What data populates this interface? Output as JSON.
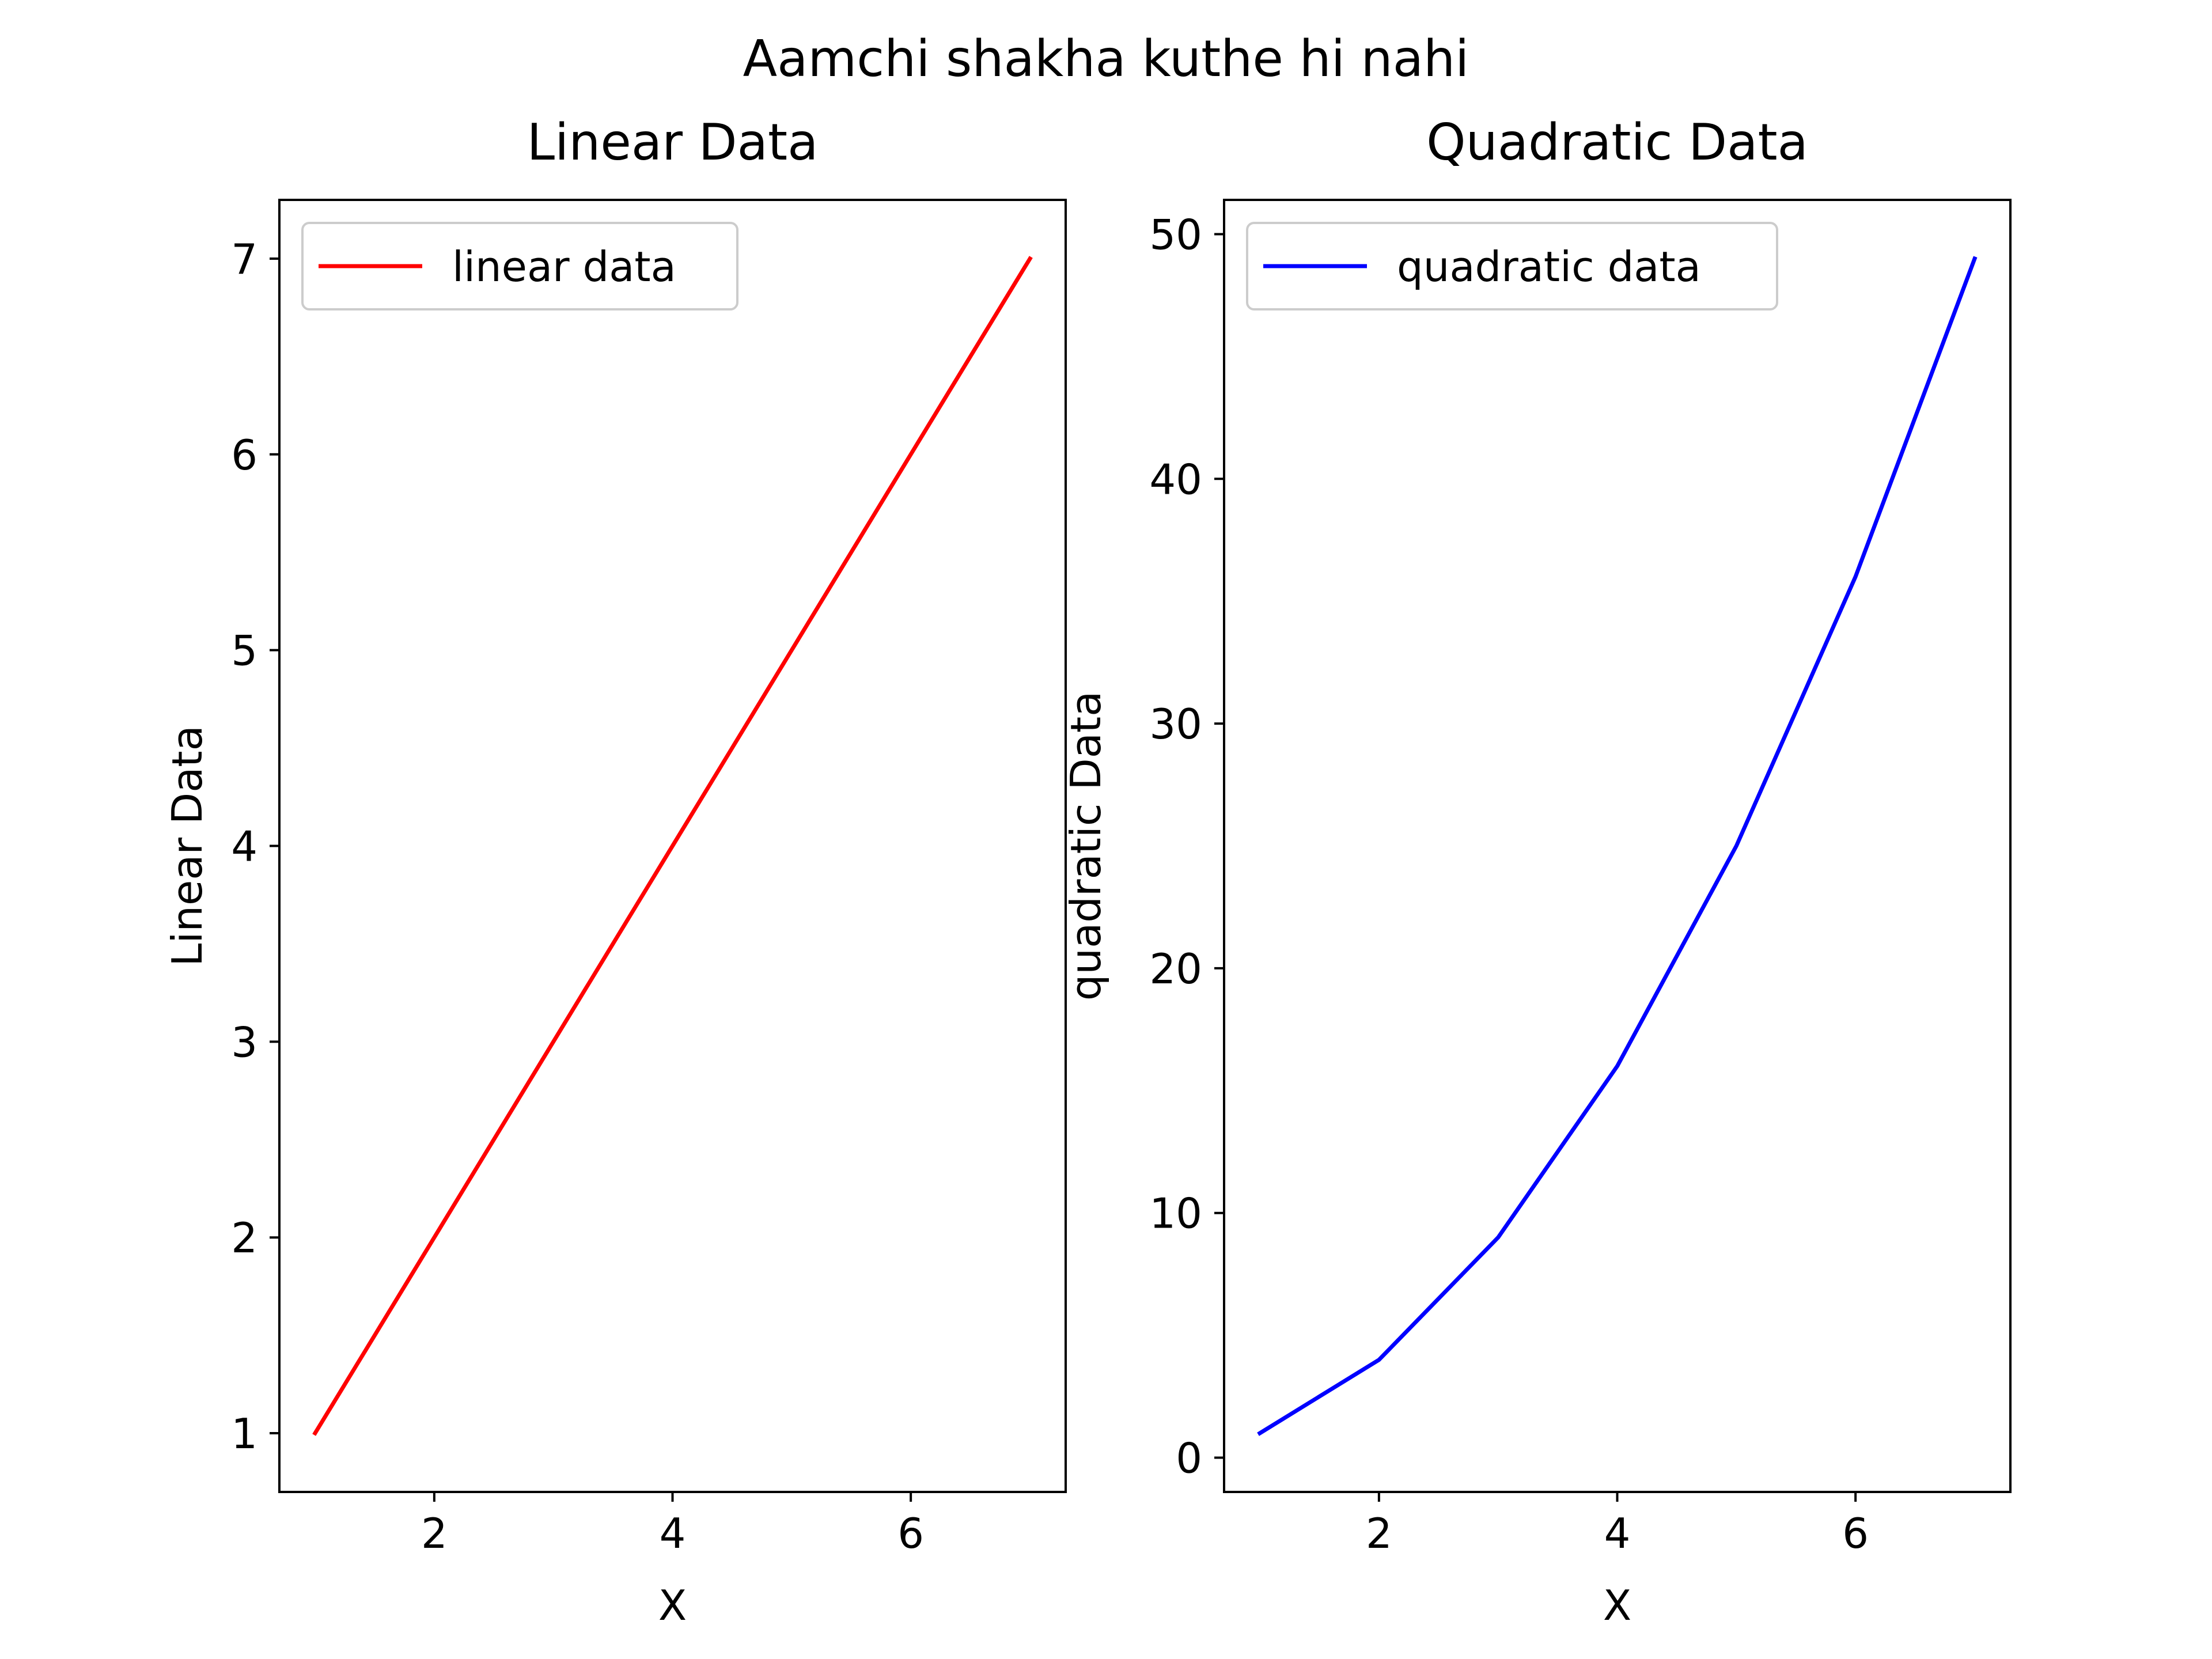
{
  "figure": {
    "suptitle": "Aamchi shakha kuthe hi nahi"
  },
  "chart_data": [
    {
      "type": "line",
      "title": "Linear Data",
      "xlabel": "X",
      "ylabel": "Linear Data",
      "xlim": [
        0.7,
        7.3
      ],
      "ylim": [
        0.7,
        7.3
      ],
      "xticks": [
        2,
        4,
        6
      ],
      "yticks": [
        1,
        2,
        3,
        4,
        5,
        6,
        7
      ],
      "grid": false,
      "legend_position": "upper-left",
      "series": [
        {
          "name": "linear data",
          "color": "#ff0000",
          "x": [
            1,
            2,
            3,
            4,
            5,
            6,
            7
          ],
          "y": [
            1,
            2,
            3,
            4,
            5,
            6,
            7
          ]
        }
      ]
    },
    {
      "type": "line",
      "title": "Quadratic Data",
      "xlabel": "X",
      "ylabel": "quadratic Data",
      "xlim": [
        0.7,
        7.3
      ],
      "ylim": [
        -1.4,
        51.4
      ],
      "xticks": [
        2,
        4,
        6
      ],
      "yticks": [
        0,
        10,
        20,
        30,
        40,
        50
      ],
      "grid": false,
      "legend_position": "upper-left",
      "series": [
        {
          "name": "quadratic data",
          "color": "#0000ff",
          "x": [
            1,
            2,
            3,
            4,
            5,
            6,
            7
          ],
          "y": [
            1,
            4,
            9,
            16,
            25,
            36,
            49
          ]
        }
      ]
    }
  ]
}
